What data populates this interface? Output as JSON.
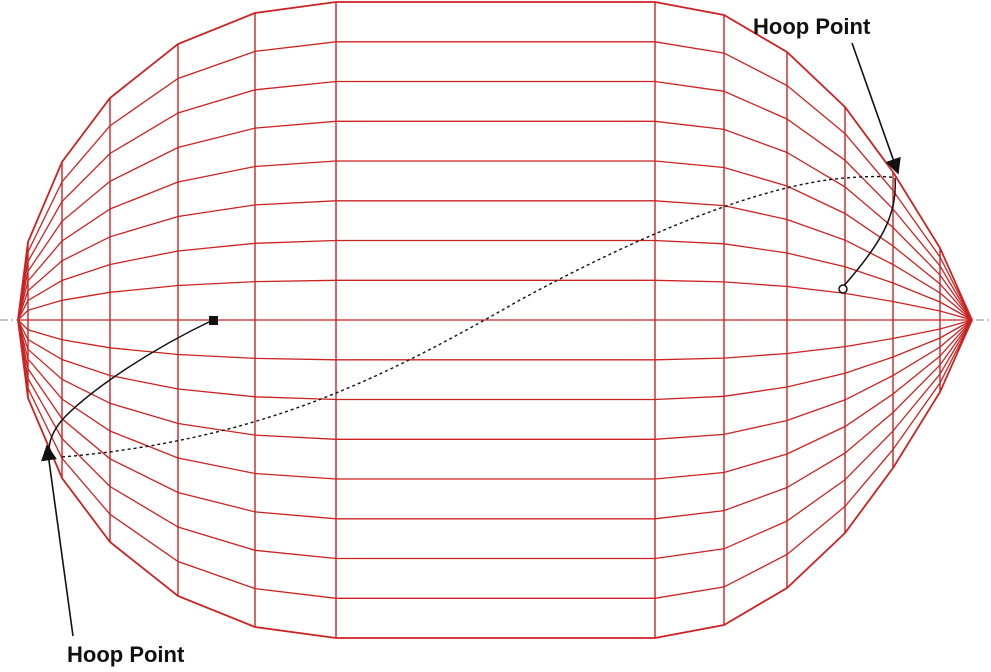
{
  "labels": {
    "hoop_top": "Hoop Point",
    "hoop_bottom": "Hoop Point"
  },
  "colors": {
    "mesh": "#cc2222",
    "axis": "#888888",
    "ink": "#111111"
  }
}
